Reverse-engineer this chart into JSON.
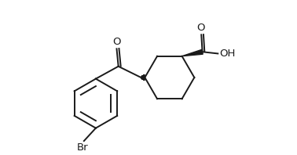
{
  "bg_color": "#ffffff",
  "line_color": "#1a1a1a",
  "line_width": 1.4,
  "figsize": [
    3.78,
    1.98
  ],
  "dpi": 100,
  "font_size": 9.5,
  "br_label": "Br",
  "o_label": "O",
  "oh_label": "OH",
  "xlim": [
    -1.0,
    9.5
  ],
  "ylim": [
    -4.2,
    2.8
  ]
}
